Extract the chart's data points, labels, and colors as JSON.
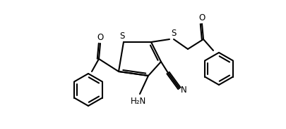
{
  "bg_color": "#ffffff",
  "line_color": "#000000",
  "lw": 1.5,
  "figsize": [
    4.06,
    1.84
  ],
  "dpi": 100,
  "xlim": [
    0,
    406
  ],
  "ylim": [
    0,
    184
  ]
}
